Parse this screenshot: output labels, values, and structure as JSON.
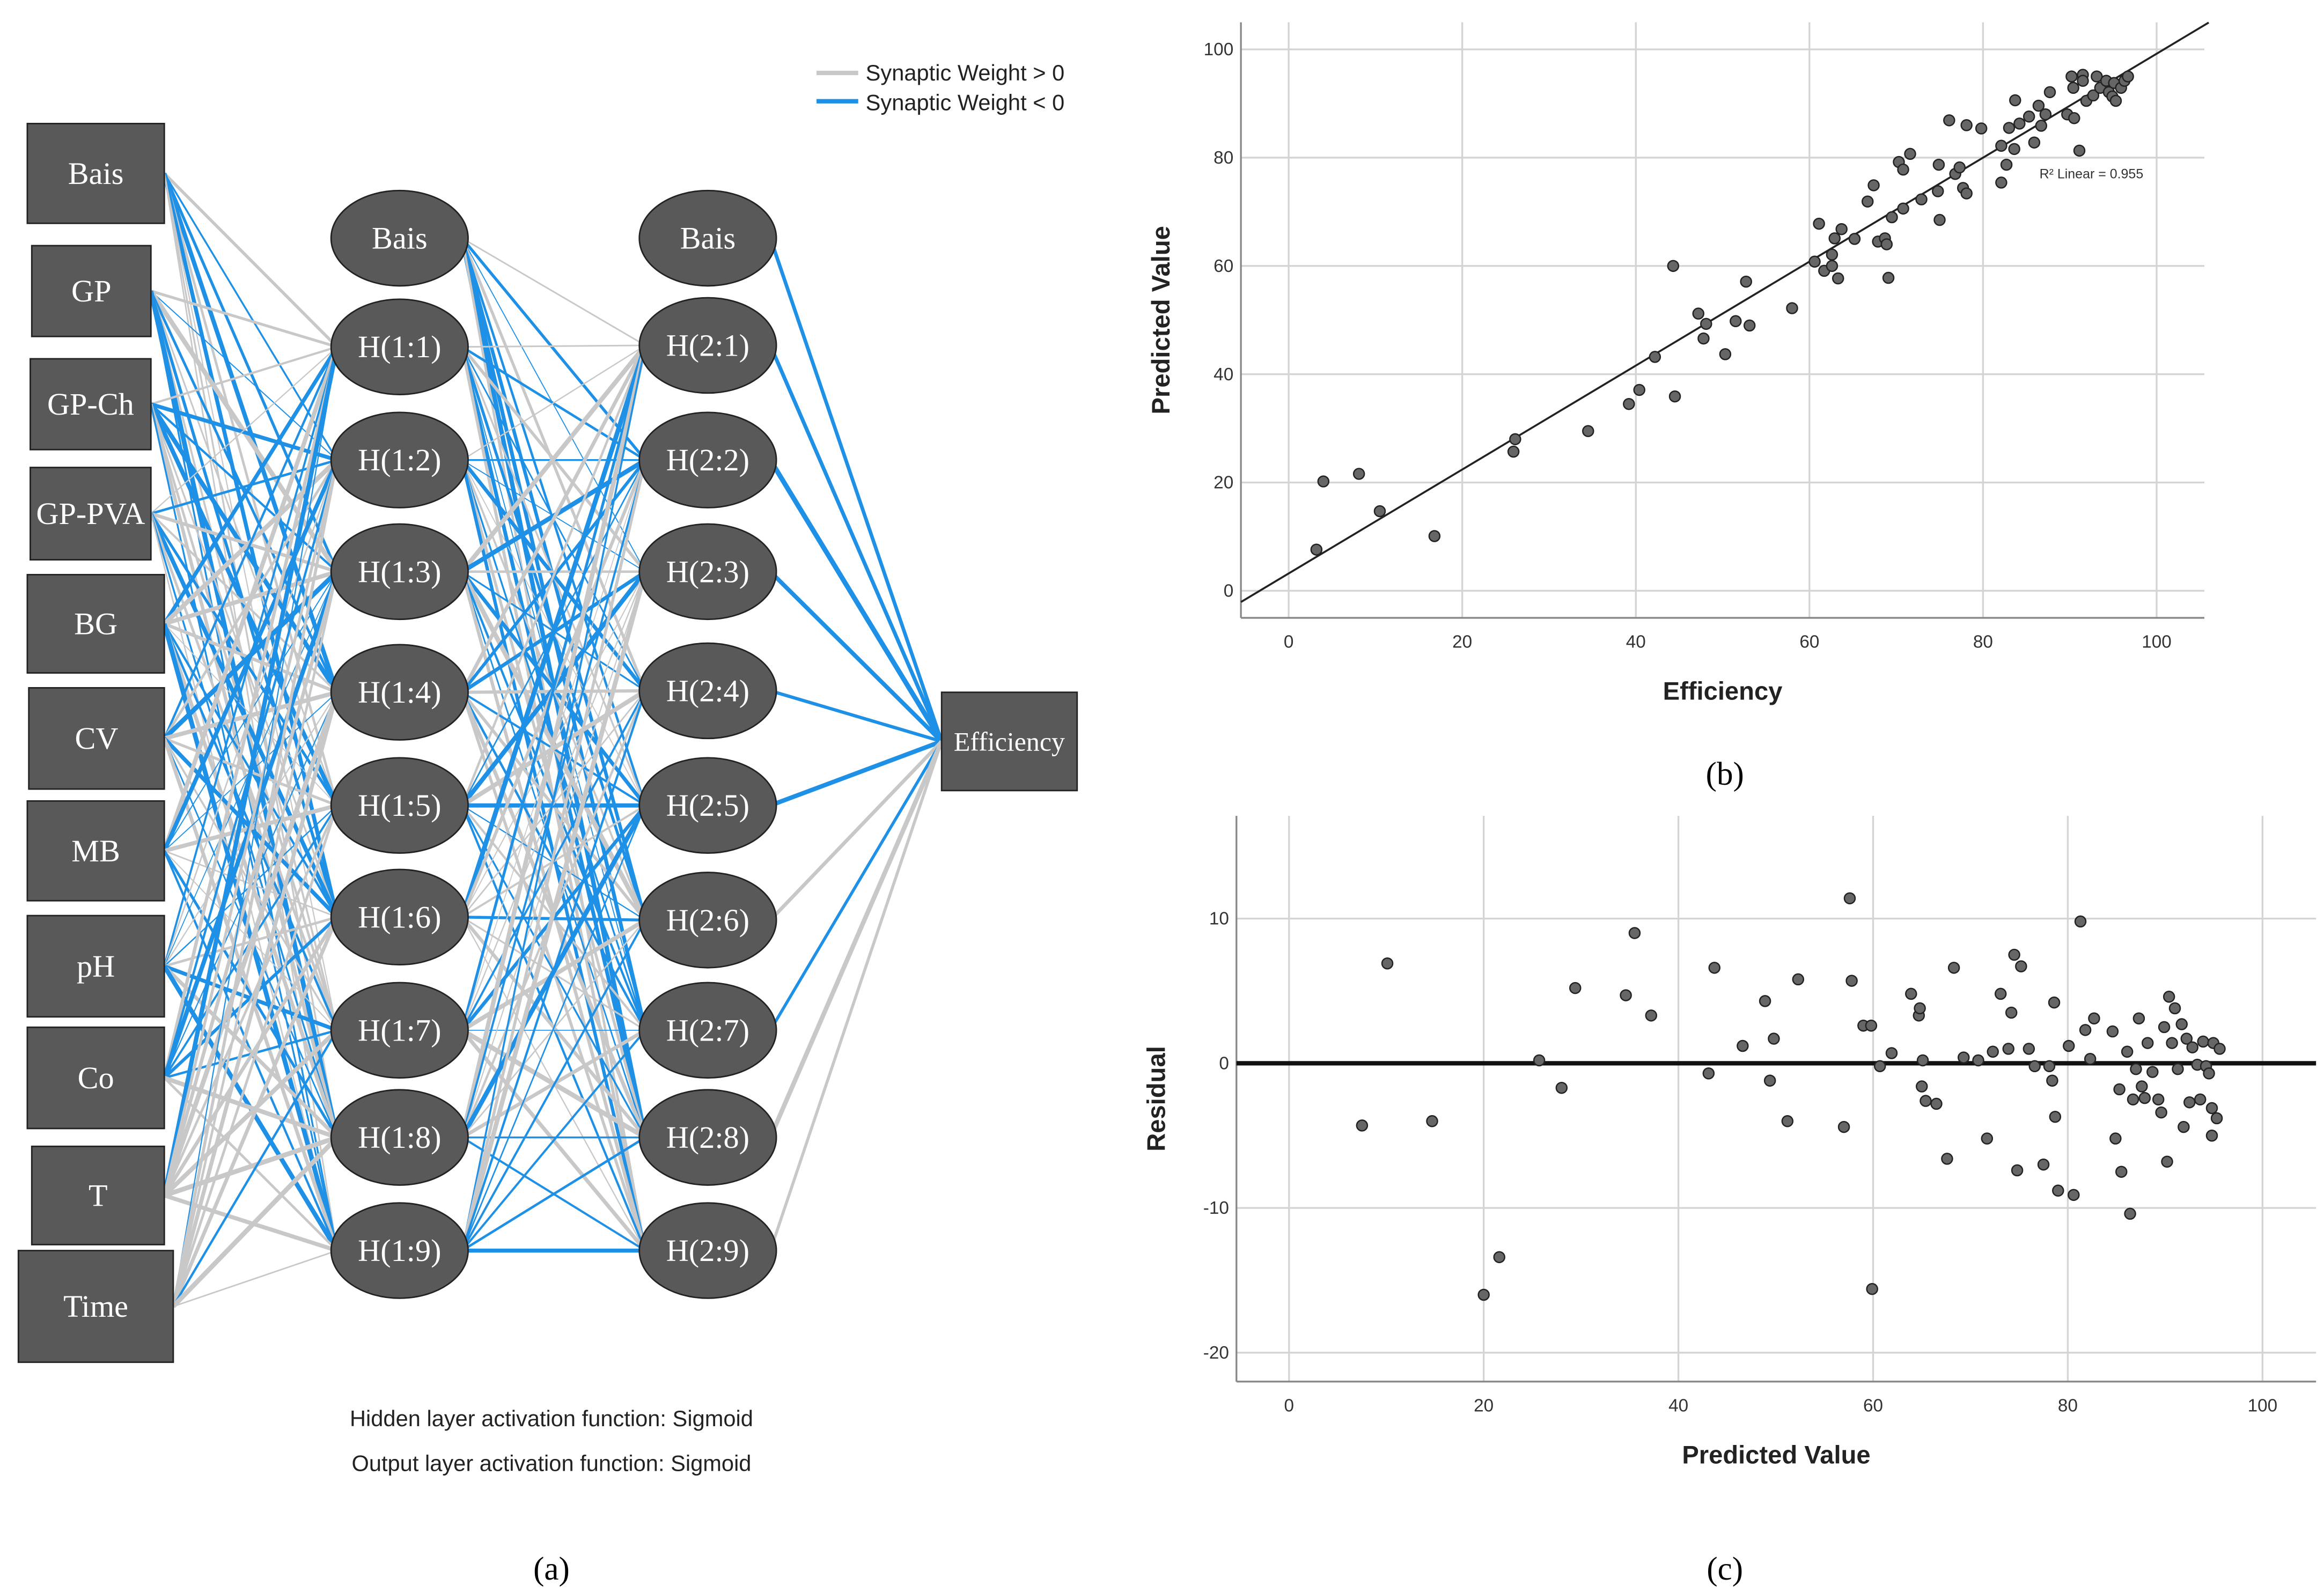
{
  "network": {
    "legend": [
      {
        "label": "Synaptic Weight > 0",
        "color": "#c8c8c8"
      },
      {
        "label": "Synaptic Weight < 0",
        "color": "#1e90e6"
      }
    ],
    "input_layer": [
      "Bais",
      "GP",
      "GP-Ch",
      "GP-PVA",
      "BG",
      "CV",
      "MB",
      "pH",
      "Co",
      "T",
      "Time"
    ],
    "hidden_layer_1": [
      "Bais",
      "H(1:1)",
      "H(1:2)",
      "H(1:3)",
      "H(1:4)",
      "H(1:5)",
      "H(1:6)",
      "H(1:7)",
      "H(1:8)",
      "H(1:9)"
    ],
    "hidden_layer_2": [
      "Bais",
      "H(2:1)",
      "H(2:2)",
      "H(2:3)",
      "H(2:4)",
      "H(2:5)",
      "H(2:6)",
      "H(2:7)",
      "H(2:8)",
      "H(2:9)"
    ],
    "output_layer": [
      "Efficiency"
    ],
    "output_weight_signs": [
      "neg",
      "neg",
      "neg",
      "neg",
      "neg",
      "neg",
      "pos",
      "neg",
      "pos",
      "pos"
    ],
    "hidden_activation": "Hidden layer activation function: Sigmoid",
    "output_activation": "Output layer activation function: Sigmoid",
    "node_color": "#595959",
    "panel_label": "(a)"
  },
  "chart_data": [
    {
      "type": "scatter",
      "panel_label": "(b)",
      "xlabel": "Efficiency",
      "ylabel": "Predicted Value",
      "xlim": [
        -5.5,
        105.5
      ],
      "ylim": [
        -5,
        105
      ],
      "xticks": [
        0,
        20,
        40,
        60,
        80,
        100
      ],
      "yticks": [
        0,
        20,
        40,
        60,
        80,
        100
      ],
      "grid": true,
      "annotation": "R² Linear = 0.955",
      "fit_line": {
        "slope": 0.96,
        "intercept": 3.2
      },
      "points": [
        [
          3.2,
          7.6
        ],
        [
          4,
          20.2
        ],
        [
          8.1,
          21.6
        ],
        [
          10.5,
          14.7
        ],
        [
          16.8,
          10.1
        ],
        [
          25.9,
          25.7
        ],
        [
          26.1,
          28
        ],
        [
          34.5,
          29.5
        ],
        [
          39.2,
          34.5
        ],
        [
          40.4,
          37.1
        ],
        [
          42.2,
          43.2
        ],
        [
          44.5,
          35.9
        ],
        [
          44.3,
          60
        ],
        [
          47.2,
          51.2
        ],
        [
          47.8,
          46.6
        ],
        [
          48.1,
          49.3
        ],
        [
          50.3,
          43.7
        ],
        [
          51.5,
          49.8
        ],
        [
          52.7,
          57.1
        ],
        [
          53.1,
          49
        ],
        [
          58,
          52.2
        ],
        [
          60.6,
          60.8
        ],
        [
          61.1,
          67.8
        ],
        [
          61.7,
          59.1
        ],
        [
          62.6,
          60
        ],
        [
          62.6,
          62.1
        ],
        [
          62.9,
          65.1
        ],
        [
          63.3,
          57.7
        ],
        [
          63.7,
          66.8
        ],
        [
          65.2,
          65
        ],
        [
          66.7,
          71.9
        ],
        [
          67.4,
          74.9
        ],
        [
          67.9,
          64.5
        ],
        [
          68.7,
          65.1
        ],
        [
          68.9,
          64
        ],
        [
          69.1,
          57.8
        ],
        [
          69.5,
          69
        ],
        [
          70.3,
          79.2
        ],
        [
          70.8,
          77.8
        ],
        [
          70.8,
          70.6
        ],
        [
          71.6,
          80.7
        ],
        [
          72.9,
          72.3
        ],
        [
          74.8,
          73.8
        ],
        [
          74.9,
          78.7
        ],
        [
          75,
          68.5
        ],
        [
          76.1,
          86.9
        ],
        [
          76.8,
          77
        ],
        [
          77.3,
          78.2
        ],
        [
          77.7,
          74.4
        ],
        [
          78.1,
          86
        ],
        [
          78.1,
          73.4
        ],
        [
          79.8,
          85.4
        ],
        [
          82.1,
          75.4
        ],
        [
          82.1,
          82.2
        ],
        [
          82.7,
          78.7
        ],
        [
          83,
          85.5
        ],
        [
          83.6,
          81.6
        ],
        [
          83.7,
          90.6
        ],
        [
          84.2,
          86.3
        ],
        [
          85.3,
          87.6
        ],
        [
          85.9,
          82.8
        ],
        [
          86.4,
          89.6
        ],
        [
          86.7,
          85.9
        ],
        [
          87.2,
          88
        ],
        [
          87.7,
          92.1
        ],
        [
          89.7,
          88
        ],
        [
          90.2,
          95
        ],
        [
          90.4,
          92.9
        ],
        [
          90.5,
          87.3
        ],
        [
          91.1,
          81.3
        ],
        [
          91.5,
          95.3
        ],
        [
          91.5,
          94.2
        ],
        [
          91.9,
          90.5
        ],
        [
          92.7,
          91.5
        ],
        [
          93.1,
          95
        ],
        [
          93.5,
          92.9
        ],
        [
          94.2,
          94.2
        ],
        [
          94.5,
          92.1
        ],
        [
          94.9,
          91.3
        ],
        [
          95.1,
          93.8
        ],
        [
          95.3,
          90.5
        ],
        [
          95.9,
          92.9
        ],
        [
          96.3,
          94.2
        ],
        [
          96.7,
          95
        ]
      ]
    },
    {
      "type": "scatter",
      "panel_label": "(c)",
      "xlabel": "Predicted Value",
      "ylabel": "Residual",
      "xlim": [
        -5.4,
        105.5
      ],
      "ylim": [
        -22,
        17.1
      ],
      "xticks": [
        0,
        20,
        40,
        60,
        80,
        100
      ],
      "yticks": [
        10,
        0,
        -10,
        -20
      ],
      "grid": true,
      "reference_line": 0,
      "points": [
        [
          7.5,
          -4.3
        ],
        [
          10.1,
          6.9
        ],
        [
          14.7,
          -4
        ],
        [
          20,
          -16
        ],
        [
          21.6,
          -13.4
        ],
        [
          25.7,
          0.2
        ],
        [
          28,
          -1.7
        ],
        [
          29.4,
          5.2
        ],
        [
          34.6,
          4.7
        ],
        [
          35.5,
          9
        ],
        [
          37.2,
          3.3
        ],
        [
          43.1,
          -0.7
        ],
        [
          43.7,
          6.6
        ],
        [
          46.6,
          1.2
        ],
        [
          48.9,
          4.3
        ],
        [
          49.4,
          -1.2
        ],
        [
          49.8,
          1.7
        ],
        [
          51.2,
          -4
        ],
        [
          52.3,
          5.8
        ],
        [
          57,
          -4.4
        ],
        [
          57.6,
          11.4
        ],
        [
          57.8,
          5.7
        ],
        [
          59,
          2.6
        ],
        [
          59.8,
          2.6
        ],
        [
          59.9,
          -15.6
        ],
        [
          60.7,
          -0.2
        ],
        [
          61.9,
          0.7
        ],
        [
          63.9,
          4.8
        ],
        [
          64.7,
          3.3
        ],
        [
          64.8,
          3.8
        ],
        [
          65,
          -1.6
        ],
        [
          65.1,
          0.2
        ],
        [
          65.4,
          -2.6
        ],
        [
          66.5,
          -2.8
        ],
        [
          67.6,
          -6.6
        ],
        [
          68.3,
          6.6
        ],
        [
          69.3,
          0.4
        ],
        [
          70.8,
          0.2
        ],
        [
          71.7,
          -5.2
        ],
        [
          72.3,
          0.8
        ],
        [
          73.1,
          4.8
        ],
        [
          73.9,
          1
        ],
        [
          74.2,
          3.5
        ],
        [
          74.5,
          7.5
        ],
        [
          74.8,
          -7.4
        ],
        [
          75.2,
          6.7
        ],
        [
          76,
          1
        ],
        [
          76.6,
          -0.2
        ],
        [
          77.5,
          -7
        ],
        [
          78.1,
          -0.2
        ],
        [
          78.4,
          -1.2
        ],
        [
          78.6,
          4.2
        ],
        [
          78.7,
          -3.7
        ],
        [
          79,
          -8.8
        ],
        [
          80.1,
          1.2
        ],
        [
          80.6,
          -9.1
        ],
        [
          81.3,
          9.8
        ],
        [
          81.8,
          2.3
        ],
        [
          82.3,
          0.3
        ],
        [
          82.7,
          3.1
        ],
        [
          84.6,
          2.2
        ],
        [
          84.9,
          -5.2
        ],
        [
          85.3,
          -1.8
        ],
        [
          85.5,
          -7.5
        ],
        [
          86.1,
          0.8
        ],
        [
          86.4,
          -10.4
        ],
        [
          86.7,
          -2.5
        ],
        [
          87,
          -0.4
        ],
        [
          87.3,
          3.1
        ],
        [
          87.6,
          -1.6
        ],
        [
          87.9,
          -2.4
        ],
        [
          88.2,
          1.4
        ],
        [
          88.7,
          -0.6
        ],
        [
          89.3,
          -2.5
        ],
        [
          89.6,
          -3.4
        ],
        [
          89.9,
          2.5
        ],
        [
          90.2,
          -6.8
        ],
        [
          90.4,
          4.6
        ],
        [
          90.7,
          1.4
        ],
        [
          91,
          3.8
        ],
        [
          91.3,
          -0.4
        ],
        [
          91.7,
          2.7
        ],
        [
          91.9,
          -4.4
        ],
        [
          92.2,
          1.7
        ],
        [
          92.5,
          -2.7
        ],
        [
          92.8,
          1.1
        ],
        [
          93.3,
          -0.1
        ],
        [
          93.6,
          -2.5
        ],
        [
          93.9,
          1.5
        ],
        [
          94.2,
          -0.2
        ],
        [
          94.5,
          -0.7
        ],
        [
          94.8,
          -5
        ],
        [
          94.95,
          1.4
        ],
        [
          95.3,
          -3.8
        ],
        [
          95.6,
          1
        ],
        [
          94.8,
          -3.1
        ]
      ]
    }
  ]
}
